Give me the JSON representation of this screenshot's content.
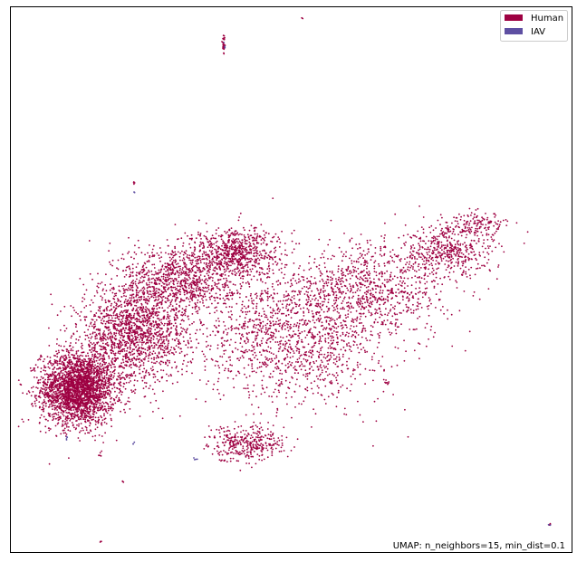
{
  "chart_data": {
    "type": "scatter",
    "title": "",
    "xlabel": "",
    "ylabel": "",
    "xlim": [
      0,
      100
    ],
    "ylim": [
      0,
      100
    ],
    "grid": false,
    "axes_ticks": false,
    "legend_position": "top-right",
    "caption": "UMAP: n_neighbors=15, min_dist=0.1",
    "series": [
      {
        "name": "Human",
        "color": "#9e0142",
        "clusters": [
          {
            "cx": 12,
            "cy": 30,
            "rx": 6,
            "ry": 6,
            "n": 2600
          },
          {
            "cx": 22,
            "cy": 40,
            "rx": 9,
            "ry": 8,
            "n": 1600
          },
          {
            "cx": 30,
            "cy": 50,
            "rx": 9,
            "ry": 6,
            "n": 900
          },
          {
            "cx": 40,
            "cy": 55,
            "rx": 7,
            "ry": 4,
            "n": 700
          },
          {
            "cx": 50,
            "cy": 40,
            "rx": 14,
            "ry": 12,
            "n": 1400
          },
          {
            "cx": 65,
            "cy": 48,
            "rx": 12,
            "ry": 8,
            "n": 800
          },
          {
            "cx": 78,
            "cy": 55,
            "rx": 8,
            "ry": 4,
            "n": 450
          },
          {
            "cx": 83,
            "cy": 60,
            "rx": 5,
            "ry": 2,
            "n": 150
          },
          {
            "cx": 42,
            "cy": 20,
            "rx": 6,
            "ry": 3,
            "n": 350
          },
          {
            "cx": 38,
            "cy": 93,
            "rx": 0.3,
            "ry": 1.5,
            "n": 30
          },
          {
            "cx": 22,
            "cy": 68,
            "rx": 0.3,
            "ry": 0.3,
            "n": 4
          },
          {
            "cx": 16,
            "cy": 18,
            "rx": 0.3,
            "ry": 0.5,
            "n": 6
          },
          {
            "cx": 20,
            "cy": 13,
            "rx": 0.3,
            "ry": 0.3,
            "n": 3
          },
          {
            "cx": 16,
            "cy": 2,
            "rx": 0.2,
            "ry": 0.3,
            "n": 3
          },
          {
            "cx": 96,
            "cy": 5,
            "rx": 0.3,
            "ry": 0.3,
            "n": 5
          },
          {
            "cx": 52,
            "cy": 98,
            "rx": 0.2,
            "ry": 0.1,
            "n": 2
          },
          {
            "cx": 6,
            "cy": 31,
            "rx": 0.3,
            "ry": 0.3,
            "n": 5
          },
          {
            "cx": 67,
            "cy": 31,
            "rx": 0.5,
            "ry": 0.5,
            "n": 8
          }
        ]
      },
      {
        "name": "IAV",
        "color": "#5e4fa2",
        "clusters": [
          {
            "cx": 10,
            "cy": 21,
            "rx": 0.3,
            "ry": 0.4,
            "n": 4
          },
          {
            "cx": 22,
            "cy": 20,
            "rx": 0.2,
            "ry": 0.4,
            "n": 3
          },
          {
            "cx": 33,
            "cy": 17,
            "rx": 0.4,
            "ry": 0.3,
            "n": 4
          },
          {
            "cx": 22,
            "cy": 66,
            "rx": 0.1,
            "ry": 0.3,
            "n": 2
          },
          {
            "cx": 38,
            "cy": 93,
            "rx": 0.2,
            "ry": 0.6,
            "n": 3
          },
          {
            "cx": 96,
            "cy": 5,
            "rx": 0.2,
            "ry": 0.2,
            "n": 2
          }
        ]
      }
    ]
  }
}
